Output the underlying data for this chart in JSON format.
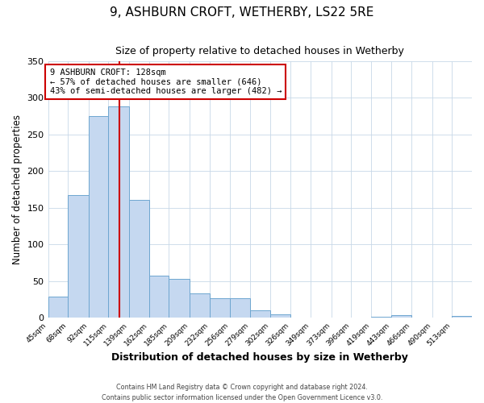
{
  "title": "9, ASHBURN CROFT, WETHERBY, LS22 5RE",
  "subtitle": "Size of property relative to detached houses in Wetherby",
  "xlabel": "Distribution of detached houses by size in Wetherby",
  "ylabel": "Number of detached properties",
  "bin_labels": [
    "45sqm",
    "68sqm",
    "92sqm",
    "115sqm",
    "139sqm",
    "162sqm",
    "185sqm",
    "209sqm",
    "232sqm",
    "256sqm",
    "279sqm",
    "302sqm",
    "326sqm",
    "349sqm",
    "373sqm",
    "396sqm",
    "419sqm",
    "443sqm",
    "466sqm",
    "490sqm",
    "513sqm"
  ],
  "bar_heights": [
    29,
    168,
    275,
    288,
    161,
    58,
    53,
    33,
    27,
    27,
    10,
    5,
    0,
    0,
    0,
    0,
    2,
    4,
    0,
    0,
    3
  ],
  "bar_color": "#c5d8f0",
  "bar_edge_color": "#6ea6d0",
  "vline_x": 128,
  "vline_color": "#cc0000",
  "annotation_text": "9 ASHBURN CROFT: 128sqm\n← 57% of detached houses are smaller (646)\n43% of semi-detached houses are larger (482) →",
  "annotation_box_color": "#ffffff",
  "annotation_box_edge": "#cc0000",
  "ylim": [
    0,
    350
  ],
  "yticks": [
    0,
    50,
    100,
    150,
    200,
    250,
    300,
    350
  ],
  "footer1": "Contains HM Land Registry data © Crown copyright and database right 2024.",
  "footer2": "Contains public sector information licensed under the Open Government Licence v3.0.",
  "bin_edges": [
    45,
    68,
    92,
    115,
    139,
    162,
    185,
    209,
    232,
    256,
    279,
    302,
    326,
    349,
    373,
    396,
    419,
    443,
    466,
    490,
    513,
    536
  ]
}
